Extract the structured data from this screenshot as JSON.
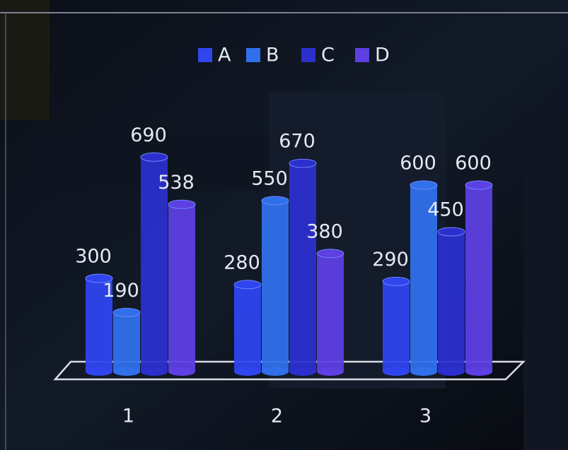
{
  "chart_data": {
    "type": "bar3d",
    "categories": [
      "1",
      "2",
      "3"
    ],
    "series": [
      {
        "name": "A",
        "color": "#2f45ee",
        "values": [
          300,
          280,
          290
        ]
      },
      {
        "name": "B",
        "color": "#3070ea",
        "values": [
          190,
          550,
          600
        ]
      },
      {
        "name": "C",
        "color": "#2b2fcc",
        "values": [
          690,
          670,
          450
        ]
      },
      {
        "name": "D",
        "color": "#5d3fe2",
        "values": [
          538,
          380,
          600
        ]
      }
    ]
  }
}
